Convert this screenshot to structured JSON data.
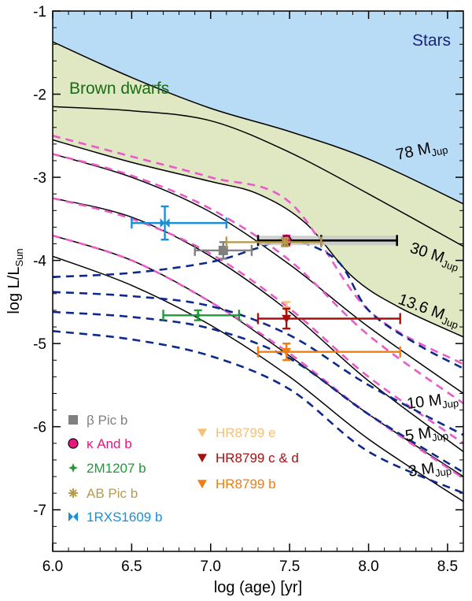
{
  "chart_data": {
    "type": "line",
    "title": "",
    "xlabel": "log (age) [yr]",
    "ylabel_main": "log L/L",
    "ylabel_sub": "Sun",
    "xlim": [
      6.0,
      8.6
    ],
    "ylim": [
      -7.5,
      -1.0
    ],
    "xticks": [
      6.0,
      6.5,
      7.0,
      7.5,
      8.0,
      8.5
    ],
    "xtick_labels": [
      "6.0",
      "6.5",
      "7.0",
      "7.5",
      "8.0",
      "8.5"
    ],
    "yticks": [
      -7,
      -6,
      -5,
      -4,
      -3,
      -2,
      -1
    ],
    "ytick_labels": [
      "-7",
      "-6",
      "-5",
      "-4",
      "-3",
      "-2",
      "-1"
    ],
    "regions": [
      {
        "id": "stars",
        "label": "Stars",
        "color": "#b8dcf5",
        "label_color": "#1a237e"
      },
      {
        "id": "brown-dwarfs",
        "label": "Brown dwarfs",
        "color": "#dfe8c2",
        "label_color": "#1b6b14"
      }
    ],
    "mass_labels": [
      {
        "number": "78",
        "unit_main": "M",
        "unit_sub": "Jup"
      },
      {
        "number": "30",
        "unit_main": "M",
        "unit_sub": "Jup"
      },
      {
        "number": "13.6",
        "unit_main": "M",
        "unit_sub": "Jup"
      },
      {
        "number": "10",
        "unit_main": "M",
        "unit_sub": "Jup"
      },
      {
        "number": "5",
        "unit_main": "M",
        "unit_sub": "Jup"
      },
      {
        "number": "3",
        "unit_main": "M",
        "unit_sub": "Jup"
      }
    ],
    "solid_tracks": [
      {
        "x": [
          6.0,
          6.5,
          7.0,
          7.5,
          8.0,
          8.6
        ],
        "y": [
          -1.37,
          -1.8,
          -2.17,
          -2.45,
          -2.78,
          -3.32
        ]
      },
      {
        "x": [
          6.0,
          6.5,
          7.0,
          7.5,
          8.0,
          8.6
        ],
        "y": [
          -2.15,
          -2.2,
          -2.32,
          -2.7,
          -3.2,
          -3.83
        ]
      },
      {
        "x": [
          6.0,
          6.5,
          7.0,
          7.3,
          7.6,
          7.9,
          8.2,
          8.6
        ],
        "y": [
          -2.55,
          -2.82,
          -3.05,
          -3.2,
          -3.55,
          -4.2,
          -4.57,
          -4.92
        ]
      },
      {
        "x": [
          6.0,
          6.5,
          7.0,
          7.5,
          8.0,
          8.6
        ],
        "y": [
          -2.72,
          -3.0,
          -3.42,
          -4.05,
          -4.8,
          -5.6
        ]
      },
      {
        "x": [
          6.0,
          6.5,
          7.0,
          7.5,
          8.0,
          8.6
        ],
        "y": [
          -3.25,
          -3.48,
          -3.95,
          -4.62,
          -5.45,
          -6.3
        ]
      },
      {
        "x": [
          6.0,
          6.5,
          7.0,
          7.5,
          8.0,
          8.6
        ],
        "y": [
          -3.7,
          -4.0,
          -4.5,
          -5.15,
          -5.85,
          -6.6
        ]
      },
      {
        "x": [
          6.0,
          6.5,
          7.0,
          7.5,
          8.0,
          8.6
        ],
        "y": [
          -3.95,
          -4.3,
          -4.78,
          -5.4,
          -6.15,
          -6.9
        ]
      }
    ],
    "magenta_dashed_tracks": [
      {
        "x": [
          6.0,
          6.5,
          7.0,
          7.5,
          8.0,
          8.6
        ],
        "y": [
          -2.5,
          -2.75,
          -3.0,
          -3.3,
          -4.6,
          -5.25
        ]
      },
      {
        "x": [
          6.0,
          6.5,
          7.0,
          7.5,
          8.0,
          8.6
        ],
        "y": [
          -2.72,
          -2.98,
          -3.38,
          -4.0,
          -4.9,
          -5.72
        ]
      },
      {
        "x": [
          6.0,
          6.5,
          7.0,
          7.5,
          8.0,
          8.6
        ],
        "y": [
          -3.25,
          -3.5,
          -3.92,
          -4.58,
          -5.4,
          -6.2
        ]
      },
      {
        "x": [
          6.0,
          6.5,
          7.0,
          7.5,
          8.0,
          8.6
        ],
        "y": [
          -3.7,
          -4.0,
          -4.5,
          -5.12,
          -5.85,
          -6.62
        ]
      }
    ],
    "blue_dashed_tracks": [
      {
        "x": [
          6.0,
          6.5,
          7.0,
          7.3,
          7.5,
          7.8,
          8.0,
          8.3,
          8.6
        ],
        "y": [
          -4.2,
          -4.15,
          -4.02,
          -3.85,
          -3.75,
          -4.0,
          -4.6,
          -5.0,
          -5.3
        ]
      },
      {
        "x": [
          6.0,
          6.5,
          7.0,
          7.5,
          8.0,
          8.6
        ],
        "y": [
          -4.38,
          -4.43,
          -4.55,
          -4.9,
          -5.5,
          -6.1
        ]
      },
      {
        "x": [
          6.0,
          6.5,
          7.0,
          7.5,
          8.0,
          8.6
        ],
        "y": [
          -4.62,
          -4.68,
          -4.82,
          -5.18,
          -5.85,
          -6.55
        ]
      },
      {
        "x": [
          6.0,
          6.5,
          7.0,
          7.5,
          8.0,
          8.6
        ],
        "y": [
          -4.85,
          -4.95,
          -5.15,
          -5.55,
          -6.3,
          -6.8
        ]
      }
    ],
    "series": [
      {
        "name": "β Pic b",
        "color": "#808080",
        "marker": "square",
        "x": 7.08,
        "y": -3.88,
        "xerr": [
          0.18,
          0.18
        ],
        "yerr": [
          0.1,
          0.1
        ]
      },
      {
        "name": "κ And b",
        "color": "#e8157f",
        "marker": "circle",
        "x": 7.48,
        "y": -3.76,
        "xerr": [
          0.18,
          0.7
        ],
        "yerr": [
          0.06,
          0.06
        ]
      },
      {
        "name": "2M1207 b",
        "color": "#1f9a3a",
        "marker": "star",
        "x": 6.92,
        "y": -4.66,
        "xerr": [
          0.22,
          0.26
        ],
        "yerr": [
          0.06,
          0.06
        ]
      },
      {
        "name": "AB Pic b",
        "color": "#b89a4a",
        "marker": "asterisk",
        "x": 7.47,
        "y": -3.78,
        "xerr": [
          0.37,
          0.23
        ],
        "yerr": [
          0.05,
          0.05
        ]
      },
      {
        "name": "1RXS1609 b",
        "color": "#1a8fd8",
        "marker": "bowtie",
        "x": 6.71,
        "y": -3.55,
        "xerr": [
          0.21,
          0.39
        ],
        "yerr": [
          0.2,
          0.2
        ]
      },
      {
        "name": "HR8799 e",
        "color": "#f5c07a",
        "marker": "triangle-down",
        "x": 7.48,
        "y": -4.6,
        "xerr": [
          0,
          0
        ],
        "yerr": [
          0.1,
          0.1
        ]
      },
      {
        "name": "HR8799 c & d",
        "color": "#a81010",
        "marker": "triangle-down",
        "x": 7.48,
        "y": -4.7,
        "xerr": [
          0.18,
          0.72
        ],
        "yerr": [
          0.12,
          0.12
        ]
      },
      {
        "name": "HR8799 b",
        "color": "#f07d12",
        "marker": "triangle-down",
        "x": 7.48,
        "y": -5.1,
        "xerr": [
          0.18,
          0.72
        ],
        "yerr": [
          0.1,
          0.1
        ]
      }
    ]
  }
}
